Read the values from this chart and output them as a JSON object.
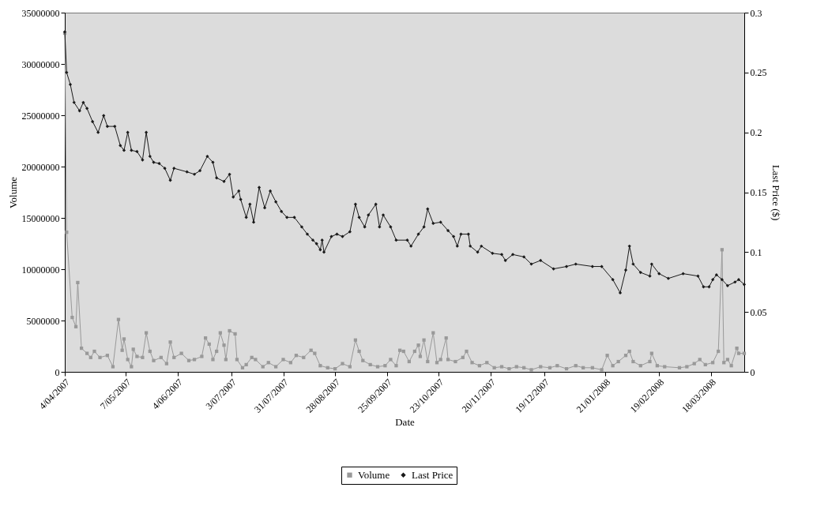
{
  "chart_data": {
    "type": "line",
    "xlabel": "Date",
    "ylabel": "Volume",
    "y2label": "Last Price ($)",
    "legend": "bottom",
    "xlim": [
      "2007-04-04",
      "2008-04-05"
    ],
    "xticks": [
      {
        "value": "2007-04-04",
        "label": "4/04/2007"
      },
      {
        "value": "2007-05-07",
        "label": "7/05/2007"
      },
      {
        "value": "2007-06-04",
        "label": "4/06/2007"
      },
      {
        "value": "2007-07-03",
        "label": "3/07/2007"
      },
      {
        "value": "2007-07-31",
        "label": "31/07/2007"
      },
      {
        "value": "2007-08-28",
        "label": "28/08/2007"
      },
      {
        "value": "2007-09-25",
        "label": "25/09/2007"
      },
      {
        "value": "2007-10-23",
        "label": "23/10/2007"
      },
      {
        "value": "2007-11-20",
        "label": "20/11/2007"
      },
      {
        "value": "2007-12-19",
        "label": "19/12/2007"
      },
      {
        "value": "2008-01-21",
        "label": "21/01/2008"
      },
      {
        "value": "2008-02-19",
        "label": "19/02/2008"
      },
      {
        "value": "2008-03-18",
        "label": "18/03/2008"
      }
    ],
    "ylim": [
      0,
      35000000
    ],
    "yticks": [
      0,
      5000000,
      10000000,
      15000000,
      20000000,
      25000000,
      30000000,
      35000000
    ],
    "y2lim": [
      0,
      0.3
    ],
    "y2ticks": [
      0,
      0.05,
      0.1,
      0.15,
      0.2,
      0.25,
      0.3
    ],
    "series": [
      {
        "name": "Volume",
        "color": "#999999",
        "marker": "square",
        "axis": "y",
        "x": [
          "2007-04-04",
          "2007-04-05",
          "2007-04-08",
          "2007-04-10",
          "2007-04-11",
          "2007-04-13",
          "2007-04-16",
          "2007-04-18",
          "2007-04-20",
          "2007-04-23",
          "2007-04-27",
          "2007-04-30",
          "2007-05-03",
          "2007-05-05",
          "2007-05-06",
          "2007-05-08",
          "2007-05-10",
          "2007-05-11",
          "2007-05-13",
          "2007-05-16",
          "2007-05-18",
          "2007-05-20",
          "2007-05-22",
          "2007-05-26",
          "2007-05-29",
          "2007-05-31",
          "2007-06-02",
          "2007-06-06",
          "2007-06-10",
          "2007-06-13",
          "2007-06-17",
          "2007-06-19",
          "2007-06-21",
          "2007-06-23",
          "2007-06-25",
          "2007-06-27",
          "2007-06-29",
          "2007-06-30",
          "2007-07-02",
          "2007-07-05",
          "2007-07-06",
          "2007-07-09",
          "2007-07-11",
          "2007-07-14",
          "2007-07-16",
          "2007-07-20",
          "2007-07-23",
          "2007-07-27",
          "2007-07-31",
          "2007-08-04",
          "2007-08-07",
          "2007-08-11",
          "2007-08-15",
          "2007-08-17",
          "2007-08-20",
          "2007-08-24",
          "2007-08-28",
          "2007-09-01",
          "2007-09-05",
          "2007-09-08",
          "2007-09-10",
          "2007-09-12",
          "2007-09-16",
          "2007-09-20",
          "2007-09-24",
          "2007-09-27",
          "2007-09-30",
          "2007-10-02",
          "2007-10-04",
          "2007-10-07",
          "2007-10-10",
          "2007-10-12",
          "2007-10-13",
          "2007-10-15",
          "2007-10-17",
          "2007-10-20",
          "2007-10-22",
          "2007-10-24",
          "2007-10-27",
          "2007-10-28",
          "2007-11-01",
          "2007-11-05",
          "2007-11-07",
          "2007-11-10",
          "2007-11-14",
          "2007-11-18",
          "2007-11-22",
          "2007-11-26",
          "2007-11-30",
          "2007-12-04",
          "2007-12-08",
          "2007-12-12",
          "2007-12-17",
          "2007-12-22",
          "2007-12-26",
          "2007-12-31",
          "2008-01-05",
          "2008-01-09",
          "2008-01-14",
          "2008-01-19",
          "2008-01-22",
          "2008-01-25",
          "2008-01-28",
          "2008-02-01",
          "2008-02-03",
          "2008-02-05",
          "2008-02-09",
          "2008-02-14",
          "2008-02-15",
          "2008-02-18",
          "2008-02-22",
          "2008-03-01",
          "2008-03-05",
          "2008-03-09",
          "2008-03-12",
          "2008-03-15",
          "2008-03-19",
          "2008-03-22",
          "2008-03-24",
          "2008-03-25",
          "2008-03-27",
          "2008-03-29",
          "2008-04-01",
          "2008-04-02",
          "2008-04-05"
        ],
        "values": [
          33000000,
          13600000,
          5300000,
          4400000,
          8700000,
          2300000,
          1800000,
          1400000,
          2000000,
          1400000,
          1600000,
          500000,
          5100000,
          2100000,
          3200000,
          1200000,
          500000,
          2200000,
          1500000,
          1400000,
          3800000,
          2000000,
          1100000,
          1400000,
          800000,
          2900000,
          1400000,
          1800000,
          1100000,
          1200000,
          1500000,
          3300000,
          2700000,
          1200000,
          2000000,
          3800000,
          2600000,
          1200000,
          4000000,
          3700000,
          1200000,
          400000,
          700000,
          1400000,
          1200000,
          500000,
          900000,
          500000,
          1200000,
          900000,
          1600000,
          1400000,
          2100000,
          1800000,
          600000,
          400000,
          300000,
          800000,
          500000,
          3100000,
          2000000,
          1100000,
          700000,
          500000,
          600000,
          1200000,
          600000,
          2100000,
          2000000,
          1000000,
          2000000,
          2600000,
          1500000,
          3100000,
          1000000,
          3800000,
          900000,
          1200000,
          3300000,
          1200000,
          1000000,
          1400000,
          2000000,
          900000,
          600000,
          900000,
          400000,
          500000,
          300000,
          500000,
          400000,
          200000,
          500000,
          400000,
          600000,
          300000,
          600000,
          400000,
          400000,
          200000,
          1600000,
          600000,
          1000000,
          1600000,
          2000000,
          1000000,
          600000,
          1000000,
          1800000,
          600000,
          500000,
          400000,
          500000,
          800000,
          1200000,
          700000,
          900000,
          2000000,
          11900000,
          900000,
          1200000,
          600000,
          2300000,
          1800000,
          1800000
        ]
      },
      {
        "name": "Last Price",
        "color": "#1a1a1a",
        "marker": "diamond",
        "axis": "y2",
        "x": [
          "2007-04-04",
          "2007-04-05",
          "2007-04-07",
          "2007-04-09",
          "2007-04-12",
          "2007-04-14",
          "2007-04-16",
          "2007-04-19",
          "2007-04-22",
          "2007-04-25",
          "2007-04-27",
          "2007-05-01",
          "2007-05-04",
          "2007-05-06",
          "2007-05-08",
          "2007-05-10",
          "2007-05-13",
          "2007-05-16",
          "2007-05-18",
          "2007-05-20",
          "2007-05-22",
          "2007-05-25",
          "2007-05-28",
          "2007-05-31",
          "2007-06-02",
          "2007-06-09",
          "2007-06-13",
          "2007-06-16",
          "2007-06-20",
          "2007-06-23",
          "2007-06-25",
          "2007-06-29",
          "2007-07-02",
          "2007-07-04",
          "2007-07-07",
          "2007-07-08",
          "2007-07-11",
          "2007-07-13",
          "2007-07-15",
          "2007-07-18",
          "2007-07-21",
          "2007-07-24",
          "2007-07-27",
          "2007-07-30",
          "2007-08-02",
          "2007-08-06",
          "2007-08-10",
          "2007-08-13",
          "2007-08-16",
          "2007-08-18",
          "2007-08-20",
          "2007-08-21",
          "2007-08-22",
          "2007-08-26",
          "2007-08-29",
          "2007-09-01",
          "2007-09-05",
          "2007-09-08",
          "2007-09-10",
          "2007-09-13",
          "2007-09-15",
          "2007-09-19",
          "2007-09-21",
          "2007-09-23",
          "2007-09-27",
          "2007-09-30",
          "2007-10-06",
          "2007-10-08",
          "2007-10-12",
          "2007-10-15",
          "2007-10-17",
          "2007-10-20",
          "2007-10-24",
          "2007-10-28",
          "2007-10-31",
          "2007-11-02",
          "2007-11-04",
          "2007-11-08",
          "2007-11-09",
          "2007-11-13",
          "2007-11-15",
          "2007-11-21",
          "2007-11-26",
          "2007-11-28",
          "2007-12-02",
          "2007-12-08",
          "2007-12-12",
          "2007-12-17",
          "2007-12-24",
          "2007-12-31",
          "2008-01-05",
          "2008-01-14",
          "2008-01-19",
          "2008-01-25",
          "2008-01-29",
          "2008-02-01",
          "2008-02-03",
          "2008-02-05",
          "2008-02-09",
          "2008-02-14",
          "2008-02-15",
          "2008-02-19",
          "2008-02-24",
          "2008-03-03",
          "2008-03-11",
          "2008-03-14",
          "2008-03-17",
          "2008-03-19",
          "2008-03-21",
          "2008-03-24",
          "2008-03-27",
          "2008-03-31",
          "2008-04-02",
          "2008-04-05"
        ],
        "values": [
          0.284,
          0.25,
          0.24,
          0.225,
          0.218,
          0.225,
          0.22,
          0.209,
          0.2,
          0.214,
          0.205,
          0.205,
          0.189,
          0.185,
          0.2,
          0.185,
          0.184,
          0.177,
          0.2,
          0.18,
          0.175,
          0.174,
          0.17,
          0.16,
          0.17,
          0.167,
          0.165,
          0.168,
          0.18,
          0.175,
          0.162,
          0.159,
          0.165,
          0.146,
          0.151,
          0.144,
          0.129,
          0.14,
          0.125,
          0.154,
          0.137,
          0.151,
          0.142,
          0.134,
          0.129,
          0.129,
          0.121,
          0.115,
          0.11,
          0.107,
          0.102,
          0.11,
          0.1,
          0.113,
          0.115,
          0.113,
          0.117,
          0.14,
          0.129,
          0.121,
          0.131,
          0.14,
          0.121,
          0.131,
          0.121,
          0.11,
          0.11,
          0.105,
          0.115,
          0.121,
          0.136,
          0.124,
          0.125,
          0.118,
          0.113,
          0.105,
          0.115,
          0.115,
          0.105,
          0.1,
          0.105,
          0.099,
          0.098,
          0.093,
          0.098,
          0.096,
          0.09,
          0.093,
          0.086,
          0.088,
          0.09,
          0.088,
          0.088,
          0.077,
          0.066,
          0.085,
          0.105,
          0.09,
          0.083,
          0.08,
          0.09,
          0.082,
          0.078,
          0.082,
          0.08,
          0.071,
          0.071,
          0.077,
          0.081,
          0.077,
          0.072,
          0.075,
          0.077,
          0.073
        ]
      }
    ]
  }
}
